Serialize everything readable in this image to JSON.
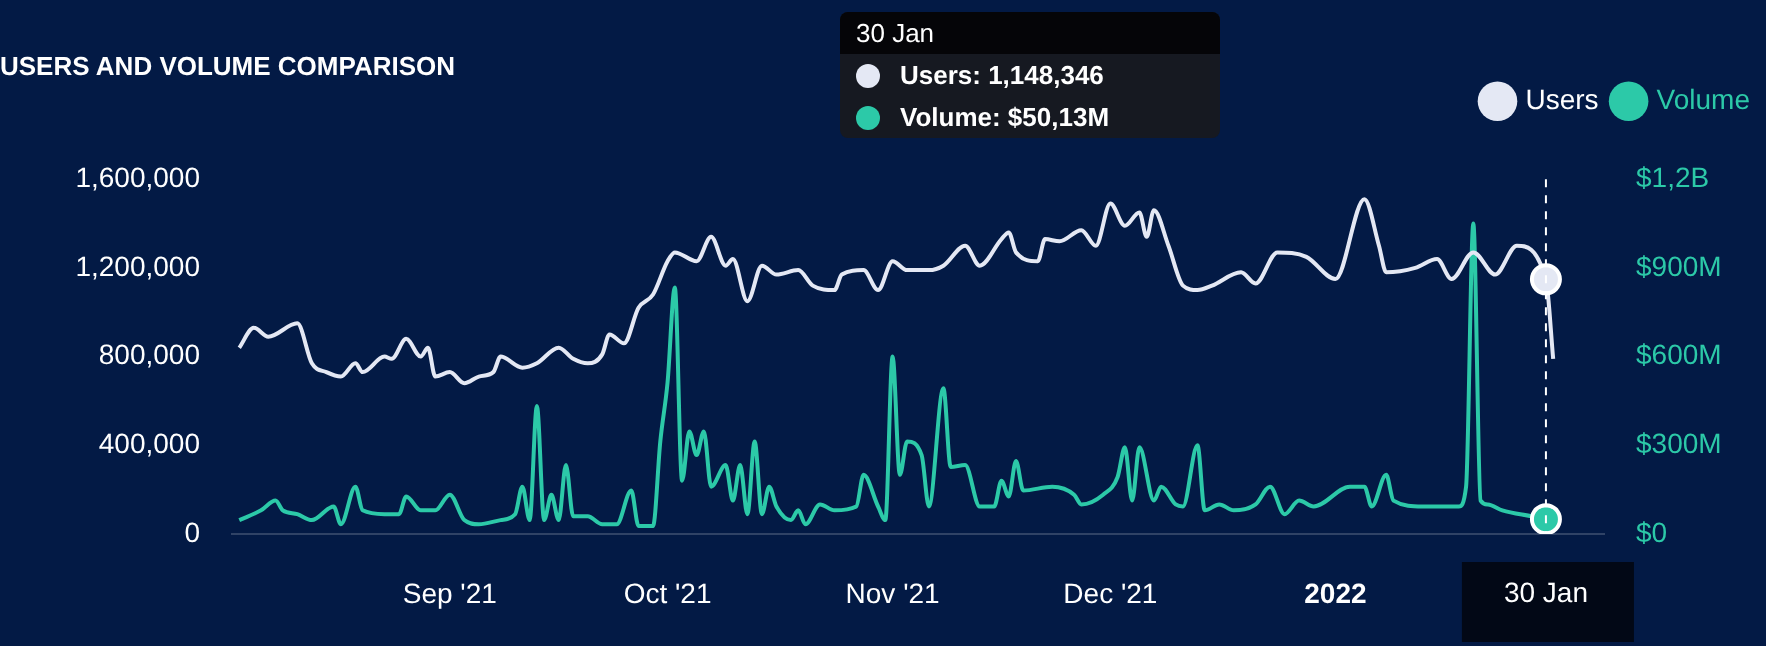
{
  "chart_data": {
    "type": "line",
    "title": "USERS AND VOLUME COMPARISON",
    "legend": "top right",
    "xlim": [
      "2021-08-02",
      "2022-02-07"
    ],
    "xticks": [
      {
        "value": "2021-09-01",
        "label": "Sep '21"
      },
      {
        "value": "2021-10-01",
        "label": "Oct '21"
      },
      {
        "value": "2021-11-01",
        "label": "Nov '21"
      },
      {
        "value": "2021-12-01",
        "label": "Dec '21"
      },
      {
        "value": "2022-01-01",
        "label": "2022"
      }
    ],
    "ylim": [
      0,
      1600000
    ],
    "yticks": [
      0,
      {
        "value": 400000,
        "label": "400,000"
      },
      {
        "value": 800000,
        "label": "800,000"
      },
      {
        "value": 1200000,
        "label": "1,200,000"
      },
      {
        "value": 1600000,
        "label": "1,600,000"
      }
    ],
    "y2lim": [
      0,
      1200000000
    ],
    "y2ticks": [
      {
        "value": 0,
        "label": "$0"
      },
      {
        "value": 300000000,
        "label": "$300M"
      },
      {
        "value": 600000000,
        "label": "$600M"
      },
      {
        "value": 900000000,
        "label": "$900M"
      },
      {
        "value": 1200000000,
        "label": "$1,2B"
      }
    ],
    "series": [
      {
        "name": "Users",
        "color": "#e4e8f4",
        "x": [
          "2021-08-03",
          "2021-08-05",
          "2021-08-07",
          "2021-08-11",
          "2021-08-13",
          "2021-08-15",
          "2021-08-17",
          "2021-08-19",
          "2021-08-20",
          "2021-08-23",
          "2021-08-24",
          "2021-08-26",
          "2021-08-28",
          "2021-08-29",
          "2021-08-30",
          "2021-09-01",
          "2021-09-03",
          "2021-09-05",
          "2021-09-07",
          "2021-09-08",
          "2021-09-11",
          "2021-09-13",
          "2021-09-16",
          "2021-09-18",
          "2021-09-20",
          "2021-09-22",
          "2021-09-23",
          "2021-09-25",
          "2021-09-27",
          "2021-09-29",
          "2021-10-01",
          "2021-10-02",
          "2021-10-05",
          "2021-10-07",
          "2021-10-09",
          "2021-10-10",
          "2021-10-12",
          "2021-10-14",
          "2021-10-16",
          "2021-10-19",
          "2021-10-21",
          "2021-10-24",
          "2021-10-25",
          "2021-10-28",
          "2021-10-30",
          "2021-11-01",
          "2021-11-03",
          "2021-11-06",
          "2021-11-08",
          "2021-11-11",
          "2021-11-13",
          "2021-11-16",
          "2021-11-17",
          "2021-11-18",
          "2021-11-21",
          "2021-11-22",
          "2021-11-24",
          "2021-11-27",
          "2021-11-29",
          "2021-12-01",
          "2021-12-03",
          "2021-12-05",
          "2021-12-06",
          "2021-12-07",
          "2021-12-09",
          "2021-12-11",
          "2021-12-13",
          "2021-12-15",
          "2021-12-19",
          "2021-12-21",
          "2021-12-24",
          "2021-12-28",
          "2022-01-01",
          "2022-01-05",
          "2022-01-07",
          "2022-01-08",
          "2022-01-12",
          "2022-01-15",
          "2022-01-17",
          "2022-01-20",
          "2022-01-23",
          "2022-01-26",
          "2022-01-30",
          "2022-01-31"
        ],
        "values": [
          840000,
          930000,
          890000,
          950000,
          770000,
          730000,
          710000,
          770000,
          730000,
          800000,
          790000,
          880000,
          800000,
          840000,
          710000,
          730000,
          680000,
          710000,
          730000,
          800000,
          750000,
          770000,
          840000,
          790000,
          770000,
          810000,
          900000,
          860000,
          1020000,
          1080000,
          1230000,
          1270000,
          1230000,
          1340000,
          1210000,
          1240000,
          1050000,
          1210000,
          1170000,
          1190000,
          1120000,
          1100000,
          1170000,
          1190000,
          1100000,
          1230000,
          1190000,
          1190000,
          1210000,
          1300000,
          1210000,
          1330000,
          1360000,
          1270000,
          1230000,
          1330000,
          1320000,
          1370000,
          1300000,
          1490000,
          1390000,
          1450000,
          1340000,
          1460000,
          1300000,
          1120000,
          1100000,
          1120000,
          1180000,
          1130000,
          1270000,
          1250000,
          1150000,
          1510000,
          1300000,
          1180000,
          1200000,
          1240000,
          1150000,
          1270000,
          1170000,
          1300000,
          1148346,
          790000
        ]
      },
      {
        "name": "Volume",
        "color": "#2cc9a8",
        "axis": "y2",
        "x": [
          "2021-08-03",
          "2021-08-06",
          "2021-08-08",
          "2021-08-09",
          "2021-08-11",
          "2021-08-13",
          "2021-08-16",
          "2021-08-17",
          "2021-08-19",
          "2021-08-20",
          "2021-08-23",
          "2021-08-25",
          "2021-08-26",
          "2021-08-28",
          "2021-08-30",
          "2021-09-01",
          "2021-09-03",
          "2021-09-05",
          "2021-09-08",
          "2021-09-10",
          "2021-09-11",
          "2021-09-12",
          "2021-09-13",
          "2021-09-14",
          "2021-09-15",
          "2021-09-16",
          "2021-09-17",
          "2021-09-18",
          "2021-09-20",
          "2021-09-22",
          "2021-09-24",
          "2021-09-26",
          "2021-09-27",
          "2021-09-29",
          "2021-09-30",
          "2021-10-01",
          "2021-10-02",
          "2021-10-03",
          "2021-10-04",
          "2021-10-05",
          "2021-10-06",
          "2021-10-07",
          "2021-10-09",
          "2021-10-10",
          "2021-10-11",
          "2021-10-12",
          "2021-10-13",
          "2021-10-14",
          "2021-10-15",
          "2021-10-16",
          "2021-10-18",
          "2021-10-19",
          "2021-10-20",
          "2021-10-22",
          "2021-10-24",
          "2021-10-27",
          "2021-10-28",
          "2021-10-30",
          "2021-10-31",
          "2021-11-01",
          "2021-11-02",
          "2021-11-03",
          "2021-11-05",
          "2021-11-06",
          "2021-11-08",
          "2021-11-09",
          "2021-11-11",
          "2021-11-13",
          "2021-11-15",
          "2021-11-16",
          "2021-11-17",
          "2021-11-18",
          "2021-11-19",
          "2021-11-23",
          "2021-11-26",
          "2021-11-27",
          "2021-11-30",
          "2021-12-02",
          "2021-12-03",
          "2021-12-04",
          "2021-12-05",
          "2021-12-07",
          "2021-12-08",
          "2021-12-10",
          "2021-12-11",
          "2021-12-13",
          "2021-12-14",
          "2021-12-16",
          "2021-12-18",
          "2021-12-21",
          "2021-12-23",
          "2021-12-25",
          "2021-12-27",
          "2021-12-29",
          "2022-01-03",
          "2022-01-05",
          "2022-01-06",
          "2022-01-08",
          "2022-01-09",
          "2022-01-13",
          "2022-01-18",
          "2022-01-19",
          "2022-01-20",
          "2022-01-21",
          "2022-01-22",
          "2022-01-24",
          "2022-01-28",
          "2022-01-30"
        ],
        "values": [
          47000000,
          80000000,
          113000000,
          80000000,
          67000000,
          47000000,
          93000000,
          33000000,
          160000000,
          80000000,
          67000000,
          67000000,
          127000000,
          80000000,
          80000000,
          133000000,
          47000000,
          33000000,
          47000000,
          67000000,
          160000000,
          47000000,
          433000000,
          47000000,
          133000000,
          47000000,
          233000000,
          60000000,
          60000000,
          33000000,
          33000000,
          147000000,
          27000000,
          27000000,
          313000000,
          513000000,
          834000000,
          180000000,
          347000000,
          267000000,
          347000000,
          160000000,
          233000000,
          113000000,
          233000000,
          67000000,
          313000000,
          67000000,
          160000000,
          93000000,
          47000000,
          80000000,
          33000000,
          100000000,
          80000000,
          93000000,
          200000000,
          93000000,
          47000000,
          600000000,
          200000000,
          313000000,
          267000000,
          93000000,
          493000000,
          227000000,
          233000000,
          93000000,
          93000000,
          180000000,
          127000000,
          247000000,
          147000000,
          160000000,
          133000000,
          100000000,
          133000000,
          193000000,
          293000000,
          113000000,
          293000000,
          113000000,
          160000000,
          100000000,
          93000000,
          300000000,
          80000000,
          100000000,
          80000000,
          100000000,
          160000000,
          67000000,
          113000000,
          93000000,
          160000000,
          160000000,
          93000000,
          200000000,
          113000000,
          93000000,
          93000000,
          160000000,
          1050000000,
          113000000,
          100000000,
          80000000,
          60000000,
          50130000
        ]
      }
    ],
    "ref_lines": [
      {
        "axis": "x",
        "value": "2022-01-30",
        "label": "30 Jan",
        "color": "#ffffff",
        "line_style": "dashed"
      }
    ],
    "annotations": [
      "30 Jan",
      "Users: 1,148,346",
      "Volume: $50,13M"
    ]
  }
}
